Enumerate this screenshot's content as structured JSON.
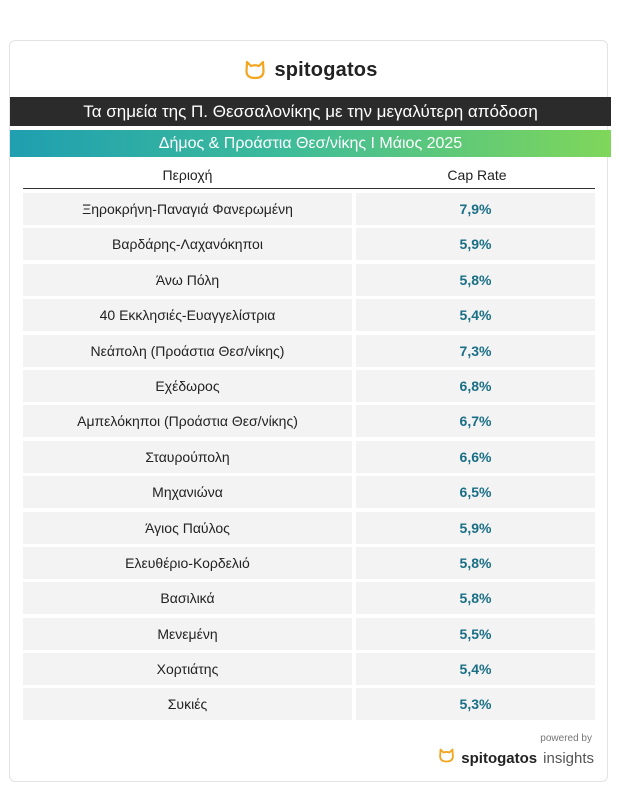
{
  "brand": {
    "name": "spitogatos",
    "accent": "#f2a51f",
    "icon": "cat-icon"
  },
  "header": {
    "title": "Τα σημεία της Π. Θεσσαλονίκης με την μεγαλύτερη απόδοση",
    "subtitle": "Δήμος & Προάστια Θεσ/νίκης I Μάιος 2025"
  },
  "table": {
    "columns": [
      "Περιοχή",
      "Cap Rate"
    ],
    "rows": [
      {
        "area": "Ξηροκρήνη-Παναγιά Φανερωμένη",
        "cap_rate": "7,9%"
      },
      {
        "area": "Βαρδάρης-Λαχανόκηποι",
        "cap_rate": "5,9%"
      },
      {
        "area": "Άνω Πόλη",
        "cap_rate": "5,8%"
      },
      {
        "area": "40 Εκκλησιές-Ευαγγελίστρια",
        "cap_rate": "5,4%"
      },
      {
        "area": "Νεάπολη (Προάστια Θεσ/νίκης)",
        "cap_rate": "7,3%"
      },
      {
        "area": "Εχέδωρος",
        "cap_rate": "6,8%"
      },
      {
        "area": "Αμπελόκηποι (Προάστια Θεσ/νίκης)",
        "cap_rate": "6,7%"
      },
      {
        "area": "Σταυρούπολη",
        "cap_rate": "6,6%"
      },
      {
        "area": "Μηχανιώνα",
        "cap_rate": "6,5%"
      },
      {
        "area": "Άγιος Παύλος",
        "cap_rate": "5,9%"
      },
      {
        "area": "Ελευθέριο-Κορδελιό",
        "cap_rate": "5,8%"
      },
      {
        "area": "Βασιλικά",
        "cap_rate": "5,8%"
      },
      {
        "area": "Μενεμένη",
        "cap_rate": "5,5%"
      },
      {
        "area": "Χορτιάτης",
        "cap_rate": "5,4%"
      },
      {
        "area": "Συκιές",
        "cap_rate": "5,3%"
      }
    ]
  },
  "footer": {
    "powered_by": "powered by",
    "brand": "spitogatos",
    "product": "insights"
  }
}
